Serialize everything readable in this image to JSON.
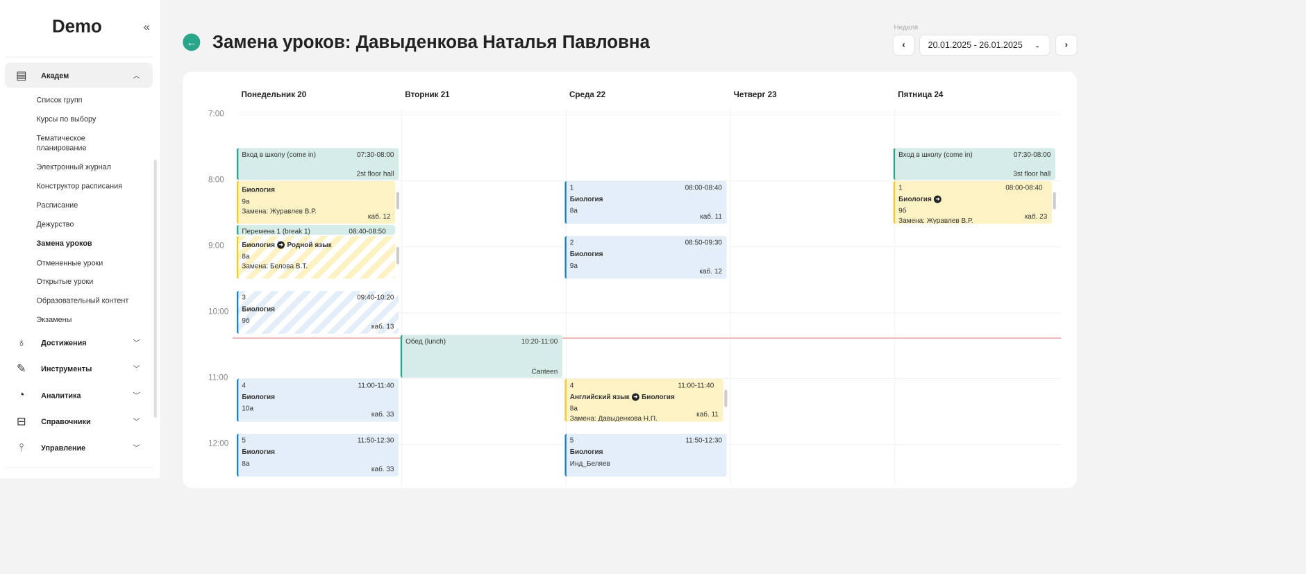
{
  "sidebar": {
    "logo": "Demo",
    "groups": [
      {
        "label": "Академ",
        "icon": "journal-icon",
        "open": true
      },
      {
        "label": "Достижения",
        "icon": "award-icon"
      },
      {
        "label": "Инструменты",
        "icon": "tools-icon"
      },
      {
        "label": "Аналитика",
        "icon": "pie-chart-icon"
      },
      {
        "label": "Справочники",
        "icon": "book-icon"
      },
      {
        "label": "Управление",
        "icon": "sliders-icon"
      }
    ],
    "academ_items": [
      "Список групп",
      "Курсы по выбору",
      "Тематическое планирование",
      "Электронный журнал",
      "Конструктор расписания",
      "Расписание",
      "Дежурство",
      "Замена уроков",
      "Отмененные уроки",
      "Открытые уроки",
      "Образовательный контент",
      "Экзамены"
    ],
    "active_item": "Замена уроков"
  },
  "header": {
    "title": "Замена уроков: Давыденкова Наталья Павловна",
    "week_label": "Неделя",
    "week_value": "20.01.2025 - 26.01.2025"
  },
  "days": [
    "Понедельник 20",
    "Вторник 21",
    "Среда 22",
    "Четверг 23",
    "Пятница 24"
  ],
  "hours": [
    "7:00",
    "8:00",
    "9:00",
    "10:00",
    "11:00",
    "12:00"
  ],
  "now": "10:23",
  "colors": {
    "accent": "#2aa58a",
    "now_line": "#e05a5a",
    "teal": "#d6ece8",
    "yellow": "#fdf2c4",
    "blue": "#e3eef8"
  },
  "events": [
    {
      "day": 0,
      "type": "teal",
      "title": "Вход в школу (come in)",
      "time": "07:30-08:00",
      "location": "2st floor hall"
    },
    {
      "day": 0,
      "type": "yellow",
      "scroll": true,
      "title": "Биология",
      "group": "9а",
      "room": "каб. 12",
      "note": "Замена: Журавлев В.Р.",
      "start": "08:00",
      "end": "08:40"
    },
    {
      "day": 0,
      "type": "teal",
      "scroll": true,
      "title": "Перемена 1 (break 1)",
      "time": "08:40-08:50"
    },
    {
      "day": 0,
      "type": "yellow",
      "striped": true,
      "scroll": true,
      "title": "Биология",
      "arrow_to": "Родной язык",
      "group": "8а",
      "note": "Замена: Белова В.Т.",
      "start": "08:50",
      "end": "09:30"
    },
    {
      "day": 0,
      "type": "blue",
      "striped": true,
      "number": "3",
      "title": "Биология",
      "group": "9б",
      "room": "каб. 13",
      "time": "09:40-10:20"
    },
    {
      "day": 0,
      "type": "blue",
      "number": "4",
      "title": "Биология",
      "group": "10а",
      "room": "каб. 33",
      "time": "11:00-11:40"
    },
    {
      "day": 0,
      "type": "blue",
      "number": "5",
      "title": "Биология",
      "group": "8а",
      "room": "каб. 33",
      "time": "11:50-12:30"
    },
    {
      "day": 1,
      "type": "teal",
      "title": "Обед (lunch)",
      "time": "10:20-11:00",
      "location": "Canteen"
    },
    {
      "day": 2,
      "type": "blue",
      "number": "1",
      "title": "Биология",
      "group": "8а",
      "room": "каб. 11",
      "time": "08:00-08:40"
    },
    {
      "day": 2,
      "type": "blue",
      "number": "2",
      "title": "Биология",
      "group": "9а",
      "room": "каб. 12",
      "time": "08:50-09:30"
    },
    {
      "day": 2,
      "type": "yellow",
      "scroll": true,
      "number": "4",
      "title": "Английский язык",
      "arrow_to": "Биология",
      "group": "8а",
      "room": "каб. 11",
      "note": "Замена: Давыденкова Н.П.",
      "time": "11:00-11:40"
    },
    {
      "day": 2,
      "type": "blue",
      "number": "5",
      "title": "Биология",
      "group": "Инд_Беляев",
      "time": "11:50-12:30"
    },
    {
      "day": 4,
      "type": "teal",
      "title": "Вход в школу (come in)",
      "time": "07:30-08:00",
      "location": "3st floor hall"
    },
    {
      "day": 4,
      "type": "yellow",
      "scroll": true,
      "number": "1",
      "title": "Биология",
      "arrow_to": "",
      "group": "9б",
      "room": "каб. 23",
      "note": "Замена: Журавлев В.Р.",
      "time": "08:00-08:40"
    }
  ]
}
